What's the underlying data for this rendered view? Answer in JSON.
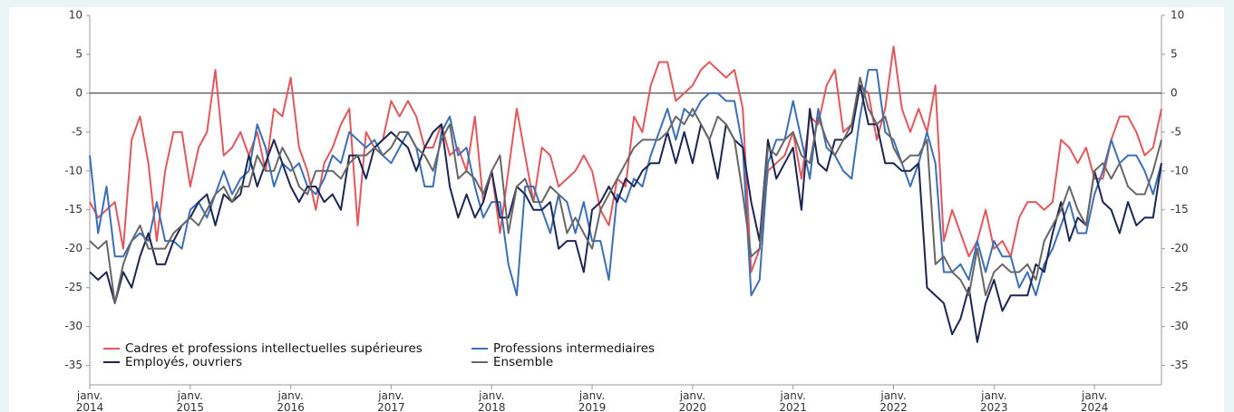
{
  "chart_data": {
    "type": "line",
    "categories": [
      "janv. 2014",
      null,
      null,
      null,
      null,
      null,
      null,
      null,
      null,
      null,
      null,
      null,
      "janv. 2015",
      null,
      null,
      null,
      null,
      null,
      null,
      null,
      null,
      null,
      null,
      null,
      "janv. 2016",
      null,
      null,
      null,
      null,
      null,
      null,
      null,
      null,
      null,
      null,
      null,
      "janv. 2017",
      null,
      null,
      null,
      null,
      null,
      null,
      null,
      null,
      null,
      null,
      null,
      "janv. 2018",
      null,
      null,
      null,
      null,
      null,
      null,
      null,
      null,
      null,
      null,
      null,
      "janv. 2019",
      null,
      null,
      null,
      null,
      null,
      null,
      null,
      null,
      null,
      null,
      null,
      "janv. 2020",
      null,
      null,
      null,
      null,
      null,
      null,
      null,
      null,
      null,
      null,
      null,
      "janv. 2021",
      null,
      null,
      null,
      null,
      null,
      null,
      null,
      null,
      null,
      null,
      null,
      "janv. 2022",
      null,
      null,
      null,
      null,
      null,
      null,
      null,
      null,
      null,
      null,
      null,
      "janv. 2023",
      null,
      null,
      null,
      null,
      null,
      null,
      null,
      null,
      null,
      null,
      null,
      "janv. 2024",
      null,
      null,
      null,
      null,
      null,
      null,
      null,
      null
    ],
    "series": [
      {
        "name": "Cadres et professions intellectuelles supérieures",
        "color": "#e0585c",
        "values": [
          -14,
          -16,
          -15,
          -14,
          -20,
          -6,
          -3,
          -9,
          -19,
          -10,
          -5,
          -5,
          -12,
          -7,
          -5,
          3,
          -8,
          -7,
          -5,
          -8,
          -5,
          -10,
          -2,
          -3,
          2,
          -7,
          -10,
          -15,
          -9,
          -7,
          -4,
          -2,
          -17,
          -5,
          -7,
          -6,
          -1,
          -3,
          -1,
          -3,
          -7,
          -7,
          -4,
          -8,
          -7,
          -10,
          -3,
          -14,
          -10,
          -18,
          -10,
          -2,
          -8,
          -14,
          -7,
          -8,
          -12,
          -11,
          -10,
          -8,
          -10,
          -15,
          -17,
          -11,
          -12,
          -3,
          -5,
          1,
          4,
          4,
          -1,
          0,
          1,
          3,
          4,
          3,
          2,
          3,
          -2,
          -23,
          -20,
          -10,
          -9,
          -8,
          -5,
          -11,
          -3,
          -4,
          1,
          3,
          -5,
          -4,
          1,
          0,
          -6,
          -2,
          6,
          -2,
          -5,
          -2,
          -5,
          1,
          -19,
          -15,
          -18,
          -21,
          -19,
          -15,
          -20,
          -19,
          -21,
          -16,
          -14,
          -14,
          -15,
          -14,
          -6,
          -7,
          -9,
          -7,
          -11,
          -11,
          -6,
          -3,
          -3,
          -5,
          -8,
          -7,
          -2
        ]
      },
      {
        "name": "Professions intermediaires",
        "color": "#3b6fb6",
        "values": [
          -8,
          -18,
          -12,
          -21,
          -21,
          -19,
          -18,
          -19,
          -14,
          -19,
          -19,
          -20,
          -15,
          -14,
          -16,
          -13,
          -10,
          -13,
          -11,
          -10,
          -4,
          -7,
          -12,
          -9,
          -10,
          -9,
          -12,
          -13,
          -11,
          -8,
          -9,
          -5,
          -6,
          -7,
          -6,
          -8,
          -9,
          -7,
          -5,
          -7,
          -12,
          -12,
          -5,
          -3,
          -8,
          -7,
          -12,
          -16,
          -14,
          -14,
          -22,
          -26,
          -12,
          -12,
          -15,
          -18,
          -13,
          -14,
          -18,
          -14,
          -19,
          -19,
          -24,
          -13,
          -14,
          -11,
          -12,
          -8,
          -5,
          -2,
          -6,
          -2,
          -3,
          -1,
          0,
          0,
          -1,
          -1,
          -7,
          -26,
          -24,
          -9,
          -6,
          -6,
          -1,
          -6,
          -11,
          -2,
          -7,
          -8,
          -10,
          -11,
          -3,
          3,
          3,
          -5,
          -6,
          -9,
          -12,
          -9,
          -5,
          -9,
          -23,
          -23,
          -22,
          -24,
          -19,
          -23,
          -19,
          -21,
          -21,
          -25,
          -23,
          -26,
          -22,
          -20,
          -17,
          -14,
          -18,
          -18,
          -13,
          -10,
          -6,
          -9,
          -8,
          -8,
          -10,
          -13,
          -9
        ]
      },
      {
        "name": "Employés, ouvriers",
        "color": "#1b2652",
        "values": [
          -23,
          -24,
          -23,
          -27,
          -23,
          -25,
          -21,
          -18,
          -22,
          -22,
          -19,
          -17,
          -16,
          -14,
          -13,
          -17,
          -13,
          -14,
          -13,
          -8,
          -12,
          -9,
          -6,
          -9,
          -12,
          -14,
          -12,
          -12,
          -14,
          -13,
          -15,
          -8,
          -8,
          -11,
          -7,
          -6,
          -5,
          -6,
          -7,
          -10,
          -7,
          -5,
          -4,
          -12,
          -16,
          -13,
          -16,
          -14,
          -10,
          -16,
          -16,
          -12,
          -13,
          -15,
          -15,
          -14,
          -20,
          -19,
          -19,
          -23,
          -15,
          -14,
          -12,
          -14,
          -11,
          -12,
          -10,
          -9,
          -9,
          -5,
          -9,
          -5,
          -9,
          -4,
          -6,
          -11,
          -4,
          -6,
          -7,
          -14,
          -19,
          -6,
          -11,
          -9,
          -7,
          -15,
          -2,
          -9,
          -10,
          -6,
          -6,
          -5,
          1,
          -4,
          -4,
          -9,
          -9,
          -10,
          -10,
          -9,
          -25,
          -26,
          -27,
          -31,
          -29,
          -25,
          -32,
          -27,
          -24,
          -28,
          -26,
          -26,
          -26,
          -22,
          -23,
          -18,
          -14,
          -19,
          -16,
          -17,
          -10,
          -14,
          -15,
          -18,
          -14,
          -17,
          -16,
          -16,
          -9
        ]
      },
      {
        "name": "Ensemble",
        "color": "#676767",
        "values": [
          -19,
          -20,
          -19,
          -27,
          -22,
          -19,
          -17,
          -20,
          -20,
          -20,
          -18,
          -17,
          -16,
          -17,
          -15,
          -13,
          -12,
          -14,
          -12,
          -12,
          -8,
          -10,
          -10,
          -7,
          -9,
          -12,
          -13,
          -10,
          -10,
          -10,
          -11,
          -9,
          -8,
          -8,
          -7,
          -8,
          -7,
          -5,
          -5,
          -7,
          -8,
          -10,
          -6,
          -4,
          -11,
          -10,
          -11,
          -13,
          -10,
          -8,
          -18,
          -12,
          -11,
          -14,
          -14,
          -12,
          -13,
          -18,
          -16,
          -18,
          -20,
          -15,
          -13,
          -11,
          -9,
          -7,
          -6,
          -6,
          -6,
          -5,
          -3,
          -4,
          -2,
          -4,
          -6,
          -3,
          -4,
          -6,
          -13,
          -21,
          -20,
          -7,
          -8,
          -6,
          -5,
          -8,
          -9,
          -3,
          -6,
          -8,
          -6,
          -4,
          2,
          -2,
          -4,
          -3,
          -7,
          -9,
          -8,
          -8,
          -6,
          -22,
          -21,
          -23,
          -24,
          -26,
          -20,
          -26,
          -23,
          -22,
          -23,
          -23,
          -22,
          -24,
          -19,
          -17,
          -15,
          -12,
          -15,
          -17,
          -10,
          -9,
          -11,
          -9,
          -12,
          -13,
          -13,
          -10,
          -6
        ]
      }
    ],
    "ylim": [
      -37.5,
      10
    ],
    "yticks": [
      10,
      5,
      0,
      -5,
      -10,
      -15,
      -20,
      -25,
      -30,
      -35
    ],
    "y2lim": [
      -37.5,
      10
    ],
    "y2ticks": [
      10,
      5,
      0,
      -5,
      -10,
      -15,
      -20,
      -25,
      -30,
      -35
    ],
    "legend": "lower left",
    "grid": false
  }
}
